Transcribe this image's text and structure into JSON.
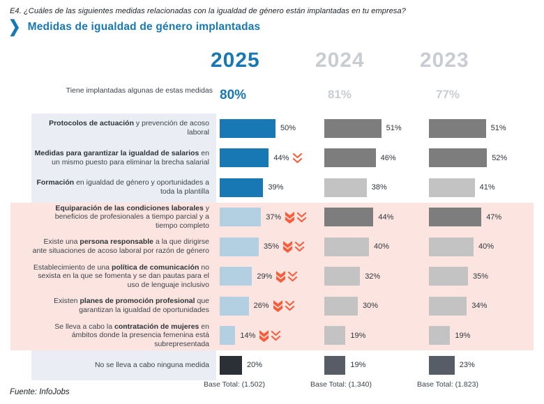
{
  "header": {
    "question": "E4. ¿Cuáles de las siguientes medidas relacionadas con la igualdad de género están implantadas en tu empresa?",
    "title": "Medidas de igualdad de género implantadas"
  },
  "summary": {
    "label": "Tiene implantadas algunas de estas medidas",
    "values": [
      "80%",
      "81%",
      "77%"
    ]
  },
  "years": [
    {
      "label": "2025",
      "base": "Base Total: (1.502)"
    },
    {
      "label": "2024",
      "base": "Base Total: (1.340)"
    },
    {
      "label": "2023",
      "base": "Base Total: (1.823)"
    }
  ],
  "footer": {
    "source": "Fuente: InfoJobs"
  },
  "colors": {
    "blueDark": "#1878b4",
    "blueLight": "#b3cfe2",
    "grayDark": "#7d7d7d",
    "grayLight": "#c3c3c3",
    "ink": "#2b3036",
    "slate": "#565d66",
    "pink": "#fce5e0",
    "labelBg": "#eaedf3",
    "mutedYear": "#c9cdd3",
    "orange": "#f85c3a"
  },
  "chart_data": {
    "type": "bar",
    "title": "Medidas de igualdad de género implantadas",
    "legend_position": "top",
    "grid": false,
    "xlim": [
      0,
      60
    ],
    "categories": [
      "Protocolos de actuación y prevención de acoso laboral",
      "Medidas para garantizar la igualdad de salarios en un mismo puesto para eliminar la brecha salarial",
      "Formación en igualdad de género y oportunidades a toda la plantilla",
      "Equiparación de las condiciones laborales y beneficios de profesionales a tiempo parcial y a tiempo completo",
      "Existe una persona responsable a la que dirigirse ante situaciones de acoso laboral por razón de género",
      "Establecimiento de una política de comunicación no sexista en la que se fomenta y se dan pautas para el uso de lenguaje inclusivo",
      "Existen planes de promoción profesional que garantizan la igualdad de oportunidades",
      "Se lleva a cabo la contratación de mujeres en ámbitos donde la presencia femenina está subrepresentada",
      "No se lleva a cabo ninguna medida"
    ],
    "series": [
      {
        "name": "2025",
        "total": 80,
        "base": 1502,
        "values": [
          50,
          44,
          39,
          37,
          35,
          29,
          26,
          14,
          20
        ]
      },
      {
        "name": "2024",
        "total": 81,
        "base": 1340,
        "values": [
          51,
          46,
          38,
          44,
          40,
          32,
          30,
          19,
          19
        ]
      },
      {
        "name": "2023",
        "total": 77,
        "base": 1823,
        "values": [
          51,
          52,
          41,
          47,
          40,
          35,
          34,
          19,
          23
        ]
      }
    ]
  },
  "rows": [
    {
      "highlighted": false,
      "label": {
        "pre": "",
        "bold": "Protocolos de actuación",
        "post": " y prevención de acoso laboral"
      },
      "cells": [
        {
          "value": 50,
          "text": "50%",
          "tone": "blueDark",
          "icons": []
        },
        {
          "value": 51,
          "text": "51%",
          "tone": "grayDark",
          "icons": []
        },
        {
          "value": 51,
          "text": "51%",
          "tone": "grayDark",
          "icons": []
        }
      ]
    },
    {
      "highlighted": false,
      "label": {
        "pre": "",
        "bold": "Medidas para garantizar la igualdad de salarios",
        "post": " en un mismo puesto para eliminar la brecha salarial"
      },
      "cells": [
        {
          "value": 44,
          "text": "44%",
          "tone": "blueDark",
          "icons": [
            "trend-down-outline-icon"
          ]
        },
        {
          "value": 46,
          "text": "46%",
          "tone": "grayDark",
          "icons": []
        },
        {
          "value": 52,
          "text": "52%",
          "tone": "grayDark",
          "icons": []
        }
      ]
    },
    {
      "highlighted": false,
      "label": {
        "pre": "",
        "bold": "Formación",
        "post": " en igualdad de género y oportunidades a toda la plantilla"
      },
      "cells": [
        {
          "value": 39,
          "text": "39%",
          "tone": "blueDark",
          "icons": []
        },
        {
          "value": 38,
          "text": "38%",
          "tone": "grayLight",
          "icons": []
        },
        {
          "value": 41,
          "text": "41%",
          "tone": "grayLight",
          "icons": []
        }
      ]
    },
    {
      "highlighted": true,
      "label": {
        "pre": "",
        "bold": "Equiparación de las condiciones laborales",
        "post": " y beneficios de profesionales a tiempo parcial y a tiempo completo"
      },
      "cells": [
        {
          "value": 37,
          "text": "37%",
          "tone": "blueLight",
          "icons": [
            "trend-down-solid-icon",
            "trend-down-outline-icon"
          ]
        },
        {
          "value": 44,
          "text": "44%",
          "tone": "grayDark",
          "icons": []
        },
        {
          "value": 47,
          "text": "47%",
          "tone": "grayDark",
          "icons": []
        }
      ]
    },
    {
      "highlighted": true,
      "label": {
        "pre": "Existe una ",
        "bold": "persona responsable",
        "post": " a la que dirigirse ante situaciones de acoso laboral por razón de género"
      },
      "cells": [
        {
          "value": 35,
          "text": "35%",
          "tone": "blueLight",
          "icons": [
            "trend-down-solid-icon",
            "trend-down-outline-icon"
          ]
        },
        {
          "value": 40,
          "text": "40%",
          "tone": "grayLight",
          "icons": []
        },
        {
          "value": 40,
          "text": "40%",
          "tone": "grayLight",
          "icons": []
        }
      ]
    },
    {
      "highlighted": true,
      "label": {
        "pre": "Establecimiento de una ",
        "bold": "política de comunicación",
        "post": " no sexista en la que se fomenta y se dan pautas para el uso de lenguaje inclusivo"
      },
      "cells": [
        {
          "value": 29,
          "text": "29%",
          "tone": "blueLight",
          "icons": [
            "trend-down-solid-icon",
            "trend-down-outline-icon"
          ]
        },
        {
          "value": 32,
          "text": "32%",
          "tone": "grayLight",
          "icons": []
        },
        {
          "value": 35,
          "text": "35%",
          "tone": "grayLight",
          "icons": []
        }
      ]
    },
    {
      "highlighted": true,
      "label": {
        "pre": "Existen ",
        "bold": "planes de promoción profesional",
        "post": " que garantizan la igualdad de oportunidades"
      },
      "cells": [
        {
          "value": 26,
          "text": "26%",
          "tone": "blueLight",
          "icons": [
            "trend-down-solid-icon",
            "trend-down-outline-icon"
          ]
        },
        {
          "value": 30,
          "text": "30%",
          "tone": "grayLight",
          "icons": []
        },
        {
          "value": 34,
          "text": "34%",
          "tone": "grayLight",
          "icons": []
        }
      ]
    },
    {
      "highlighted": true,
      "label": {
        "pre": "Se lleva a cabo la ",
        "bold": "contratación de mujeres",
        "post": " en ámbitos donde la presencia femenina está subrepresentada"
      },
      "cells": [
        {
          "value": 14,
          "text": "14%",
          "tone": "blueLight",
          "icons": [
            "trend-down-solid-icon",
            "trend-down-outline-icon"
          ]
        },
        {
          "value": 19,
          "text": "19%",
          "tone": "grayLight",
          "icons": []
        },
        {
          "value": 19,
          "text": "19%",
          "tone": "grayLight",
          "icons": []
        }
      ]
    },
    {
      "highlighted": false,
      "label": {
        "pre": "No se lleva a cabo ninguna medida",
        "bold": "",
        "post": ""
      },
      "cells": [
        {
          "value": 20,
          "text": "20%",
          "tone": "ink",
          "icons": []
        },
        {
          "value": 19,
          "text": "19%",
          "tone": "slate",
          "icons": []
        },
        {
          "value": 23,
          "text": "23%",
          "tone": "slate",
          "icons": []
        }
      ]
    }
  ]
}
